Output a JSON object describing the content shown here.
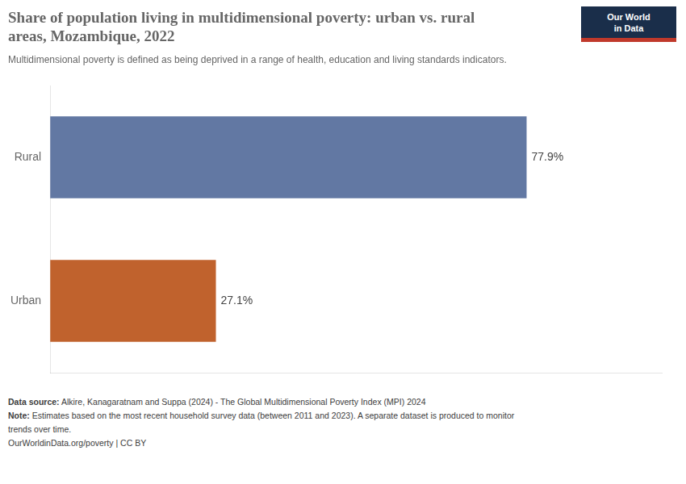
{
  "chart_data": {
    "type": "bar",
    "orientation": "horizontal",
    "title": [
      "Share of population living in multidimensional poverty: urban vs. rural",
      "areas, Mozambique, 2022"
    ],
    "subtitle": "Multidimensional poverty is defined as being deprived in a range of health, education and living standards indicators.",
    "categories": [
      "Rural",
      "Urban"
    ],
    "values": [
      77.9,
      27.1
    ],
    "value_labels": [
      "77.9%",
      "27.1%"
    ],
    "colors": [
      "#6278a3",
      "#c0622d"
    ],
    "data_labels": true,
    "xlim": [
      0,
      100
    ],
    "tick_labels": "y",
    "grid": false,
    "annotations": [
      "Our World",
      "in Data"
    ],
    "footnotes": [
      "Data source: Alkire, Kanagaratnam and Suppa (2024) - The Global Multidimensional Poverty Index (MPI) 2024",
      "Note: Estimates based on the most recent household survey data (between 2011 and 2023). A separate dataset is produced to monitor",
      "trends over time.",
      "OurWorldinData.org/poverty | CC BY"
    ]
  }
}
